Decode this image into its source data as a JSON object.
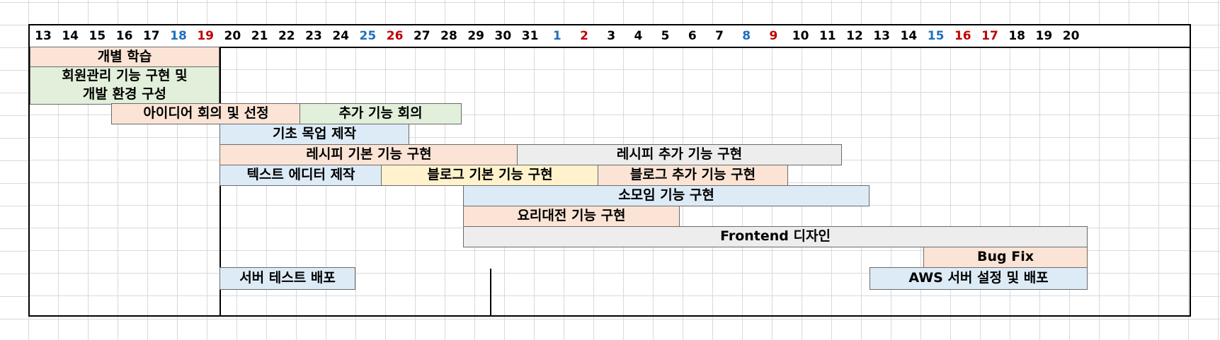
{
  "timeline": {
    "days": [
      {
        "label": "13",
        "kind": "weekday"
      },
      {
        "label": "14",
        "kind": "weekday"
      },
      {
        "label": "15",
        "kind": "weekday"
      },
      {
        "label": "16",
        "kind": "weekday"
      },
      {
        "label": "17",
        "kind": "weekday"
      },
      {
        "label": "18",
        "kind": "saturday"
      },
      {
        "label": "19",
        "kind": "sunday"
      },
      {
        "label": "20",
        "kind": "weekday"
      },
      {
        "label": "21",
        "kind": "weekday"
      },
      {
        "label": "22",
        "kind": "weekday"
      },
      {
        "label": "23",
        "kind": "weekday"
      },
      {
        "label": "24",
        "kind": "weekday"
      },
      {
        "label": "25",
        "kind": "saturday"
      },
      {
        "label": "26",
        "kind": "sunday"
      },
      {
        "label": "27",
        "kind": "weekday"
      },
      {
        "label": "28",
        "kind": "weekday"
      },
      {
        "label": "29",
        "kind": "weekday"
      },
      {
        "label": "30",
        "kind": "weekday"
      },
      {
        "label": "31",
        "kind": "weekday"
      },
      {
        "label": "1",
        "kind": "saturday"
      },
      {
        "label": "2",
        "kind": "sunday"
      },
      {
        "label": "3",
        "kind": "weekday"
      },
      {
        "label": "4",
        "kind": "weekday"
      },
      {
        "label": "5",
        "kind": "weekday"
      },
      {
        "label": "6",
        "kind": "weekday"
      },
      {
        "label": "7",
        "kind": "weekday"
      },
      {
        "label": "8",
        "kind": "saturday"
      },
      {
        "label": "9",
        "kind": "sunday"
      },
      {
        "label": "10",
        "kind": "weekday"
      },
      {
        "label": "11",
        "kind": "weekday"
      },
      {
        "label": "12",
        "kind": "weekday"
      },
      {
        "label": "13",
        "kind": "weekday"
      },
      {
        "label": "14",
        "kind": "weekday"
      },
      {
        "label": "15",
        "kind": "saturday"
      },
      {
        "label": "16",
        "kind": "sunday"
      },
      {
        "label": "17",
        "kind": "sunday"
      },
      {
        "label": "18",
        "kind": "weekday"
      },
      {
        "label": "19",
        "kind": "weekday"
      },
      {
        "label": "20",
        "kind": "weekday"
      }
    ],
    "colors": {
      "saturday": "#1f6fbf",
      "sunday": "#c00000",
      "orange": "#fbe4d5",
      "green": "#e2efda",
      "blue": "#ddebf7",
      "gray": "#ededed",
      "yellow": "#fff2cc"
    }
  },
  "tasks": {
    "individual_study": "개별 학습",
    "member_mgmt": "회원관리 기능 구현 및\n개발 환경 구성",
    "idea_meeting": "아이디어 회의 및 선정",
    "extra_feature_meeting": "추가 기능 회의",
    "basic_mockup": "기초 목업 제작",
    "recipe_basic": "레시피 기본 기능 구현",
    "recipe_extra": "레시피 추가 기능 구현",
    "text_editor": "텍스트 에디터 제작",
    "blog_basic": "블로그 기본 기능 구현",
    "blog_extra": "블로그 추가 기능 구현",
    "small_group": "소모임 기능 구현",
    "cooking_contest": "요리대전 기능 구현",
    "frontend_design": "Frontend 디자인",
    "bug_fix": "Bug Fix",
    "server_test_deploy": "서버 테스트 배포",
    "aws_deploy": "AWS 서버 설정 및 배포"
  }
}
